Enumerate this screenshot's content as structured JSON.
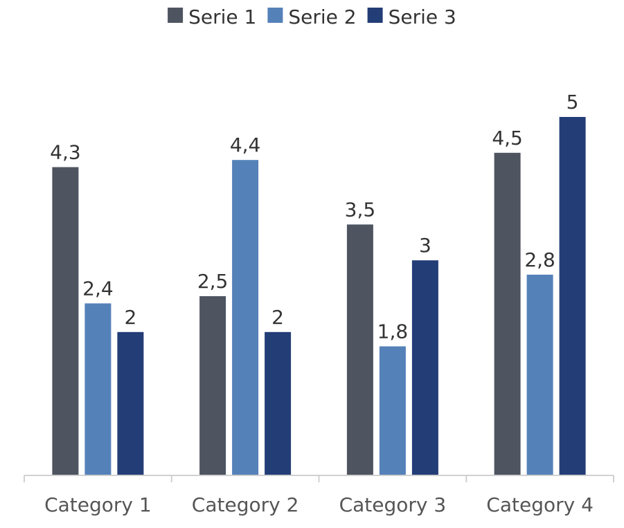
{
  "chart_data": {
    "type": "bar",
    "title": "",
    "xlabel": "",
    "ylabel": "",
    "ylim": [
      0,
      5
    ],
    "grid": false,
    "legend_position": "top",
    "decimal_separator": ",",
    "categories": [
      "Category 1",
      "Category 2",
      "Category 3",
      "Category 4"
    ],
    "series": [
      {
        "name": "Serie 1",
        "color": "#4e5560",
        "values": [
          4.3,
          2.5,
          3.5,
          4.5
        ]
      },
      {
        "name": "Serie 2",
        "color": "#5581b9",
        "values": [
          2.4,
          4.4,
          1.8,
          2.8
        ]
      },
      {
        "name": "Serie 3",
        "color": "#233d77",
        "values": [
          2,
          2,
          3,
          5
        ]
      }
    ],
    "axis_color": "#d0d0d0"
  }
}
